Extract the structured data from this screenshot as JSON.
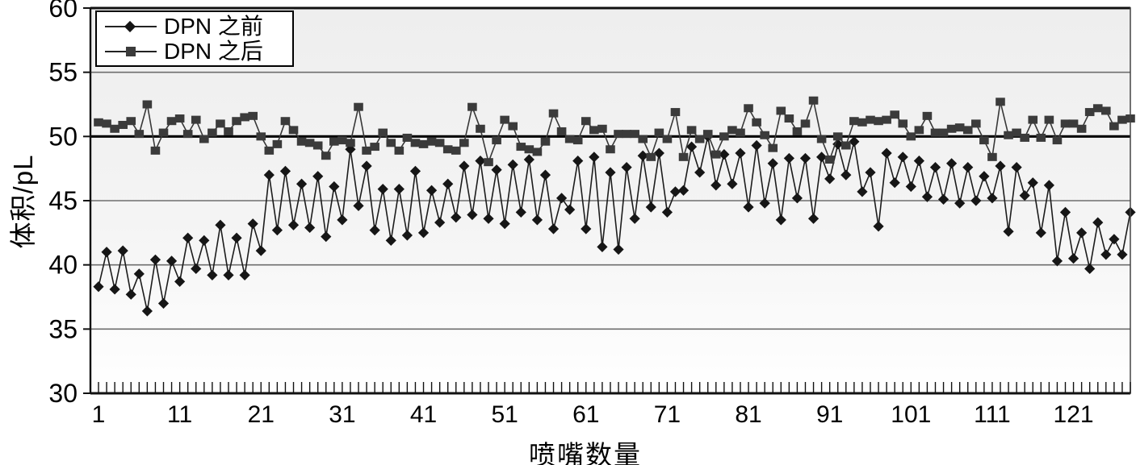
{
  "chart_data": {
    "type": "line",
    "title": "",
    "xlabel": "喷嘴数量",
    "ylabel": "体积/pL",
    "x_start": 1,
    "x_step": 1,
    "n_points": 128,
    "xlim": [
      1,
      128
    ],
    "ylim": [
      30,
      60
    ],
    "y_ticks": [
      30,
      35,
      40,
      45,
      50,
      55,
      60
    ],
    "x_tick_labels": [
      1,
      11,
      21,
      31,
      41,
      51,
      61,
      71,
      81,
      91,
      101,
      111,
      121
    ],
    "grid": "horizontal",
    "emphasized_gridline": 50,
    "legend_position": "top-left",
    "plot_bg_top": "#eeeeee",
    "plot_bg_bottom": "#ffffff",
    "series": [
      {
        "name": "DPN 之前",
        "marker": "diamond",
        "color": "#161616",
        "line_color": "#1c1c1c",
        "values": [
          38.3,
          41.0,
          38.1,
          41.1,
          37.7,
          39.3,
          36.4,
          40.4,
          37.0,
          40.3,
          38.7,
          42.1,
          39.7,
          41.9,
          39.2,
          43.1,
          39.2,
          42.1,
          39.2,
          43.2,
          41.1,
          47.0,
          42.7,
          47.3,
          43.1,
          46.3,
          42.9,
          46.9,
          42.2,
          46.1,
          43.5,
          49.0,
          44.6,
          47.7,
          42.7,
          45.9,
          41.9,
          45.9,
          42.3,
          47.3,
          42.5,
          45.8,
          43.3,
          46.3,
          43.7,
          47.7,
          43.9,
          48.1,
          43.6,
          47.4,
          43.2,
          47.8,
          44.1,
          48.2,
          43.5,
          47.0,
          42.8,
          45.2,
          44.3,
          48.1,
          42.8,
          48.4,
          41.4,
          47.2,
          41.2,
          47.6,
          43.6,
          48.5,
          44.5,
          48.7,
          44.1,
          45.7,
          45.8,
          49.2,
          47.2,
          50.0,
          46.2,
          48.6,
          46.3,
          48.7,
          44.5,
          49.3,
          44.8,
          47.9,
          43.5,
          48.3,
          45.2,
          48.3,
          43.6,
          48.4,
          46.7,
          49.4,
          47.0,
          49.6,
          45.7,
          47.2,
          43.0,
          48.7,
          46.4,
          48.4,
          46.1,
          48.1,
          45.3,
          47.6,
          45.1,
          47.9,
          44.8,
          47.6,
          45.0,
          46.9,
          45.2,
          47.7,
          42.6,
          47.6,
          45.4,
          46.4,
          42.5,
          46.2,
          40.3,
          44.1,
          40.5,
          42.5,
          39.7,
          43.3,
          40.8,
          42.0,
          40.8,
          44.1
        ]
      },
      {
        "name": "DPN 之后",
        "marker": "square",
        "color": "#3b3b3b",
        "line_color": "#383838",
        "values": [
          51.1,
          51.0,
          50.6,
          50.9,
          51.2,
          50.2,
          52.5,
          48.9,
          50.3,
          51.2,
          51.4,
          50.2,
          51.3,
          49.8,
          50.3,
          51.0,
          50.4,
          51.2,
          51.5,
          51.6,
          50.0,
          48.9,
          49.4,
          51.2,
          50.5,
          49.6,
          49.5,
          49.3,
          48.5,
          49.6,
          49.7,
          49.5,
          52.3,
          48.9,
          49.2,
          50.3,
          49.5,
          48.9,
          49.9,
          49.5,
          49.4,
          49.6,
          49.5,
          49.0,
          48.9,
          49.5,
          52.3,
          50.6,
          48.0,
          49.7,
          51.3,
          50.8,
          49.2,
          49.0,
          48.8,
          49.6,
          51.8,
          50.4,
          49.8,
          49.7,
          51.2,
          50.5,
          50.6,
          49.0,
          50.2,
          50.2,
          50.2,
          49.8,
          48.4,
          50.3,
          49.8,
          51.9,
          48.4,
          50.5,
          49.8,
          50.2,
          48.6,
          50.0,
          50.5,
          50.3,
          52.2,
          51.1,
          50.1,
          49.1,
          52.0,
          51.4,
          50.4,
          51.0,
          52.8,
          49.8,
          48.2,
          50.0,
          49.3,
          51.2,
          51.1,
          51.3,
          51.2,
          51.3,
          51.7,
          51.0,
          50.0,
          50.5,
          51.6,
          50.3,
          50.3,
          50.6,
          50.7,
          50.5,
          51.0,
          49.7,
          48.4,
          52.7,
          50.1,
          50.3,
          49.9,
          51.3,
          49.9,
          51.3,
          49.7,
          51.0,
          51.0,
          50.6,
          51.9,
          52.2,
          52.0,
          50.8,
          51.3,
          51.4
        ]
      }
    ]
  }
}
